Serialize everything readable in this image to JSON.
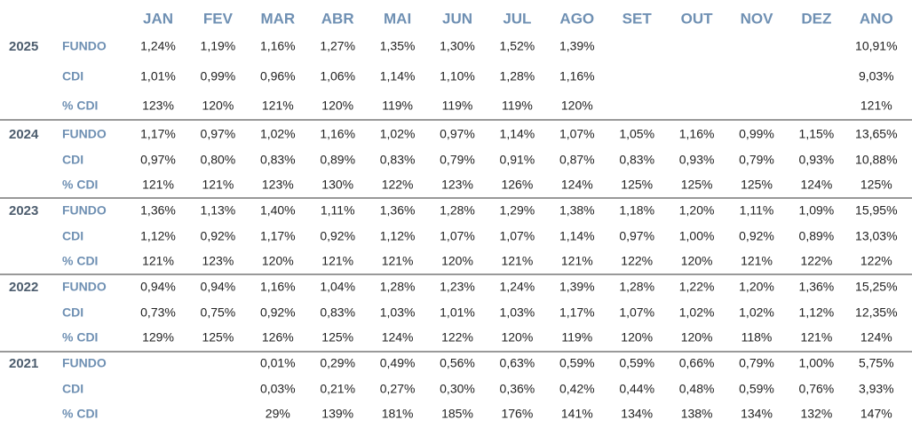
{
  "table": {
    "header": [
      "JAN",
      "FEV",
      "MAR",
      "ABR",
      "MAI",
      "JUN",
      "JUL",
      "AGO",
      "SET",
      "OUT",
      "NOV",
      "DEZ",
      "ANO"
    ],
    "years": [
      {
        "year": "2025",
        "rows": [
          {
            "label": "FUNDO",
            "cells": [
              "1,24%",
              "1,19%",
              "1,16%",
              "1,27%",
              "1,35%",
              "1,30%",
              "1,52%",
              "1,39%",
              null,
              null,
              null,
              null,
              "10,91%"
            ]
          },
          {
            "label": "CDI",
            "cells": [
              "1,01%",
              "0,99%",
              "0,96%",
              "1,06%",
              "1,14%",
              "1,10%",
              "1,28%",
              "1,16%",
              null,
              null,
              null,
              null,
              "9,03%"
            ]
          },
          {
            "label": "% CDI",
            "cells": [
              "123%",
              "120%",
              "121%",
              "120%",
              "119%",
              "119%",
              "119%",
              "120%",
              null,
              null,
              null,
              null,
              "121%"
            ]
          }
        ]
      },
      {
        "year": "2024",
        "rows": [
          {
            "label": "FUNDO",
            "cells": [
              "1,17%",
              "0,97%",
              "1,02%",
              "1,16%",
              "1,02%",
              "0,97%",
              "1,14%",
              "1,07%",
              "1,05%",
              "1,16%",
              "0,99%",
              "1,15%",
              "13,65%"
            ]
          },
          {
            "label": "CDI",
            "cells": [
              "0,97%",
              "0,80%",
              "0,83%",
              "0,89%",
              "0,83%",
              "0,79%",
              "0,91%",
              "0,87%",
              "0,83%",
              "0,93%",
              "0,79%",
              "0,93%",
              "10,88%"
            ]
          },
          {
            "label": "% CDI",
            "cells": [
              "121%",
              "121%",
              "123%",
              "130%",
              "122%",
              "123%",
              "126%",
              "124%",
              "125%",
              "125%",
              "125%",
              "124%",
              "125%"
            ]
          }
        ]
      },
      {
        "year": "2023",
        "rows": [
          {
            "label": "FUNDO",
            "cells": [
              "1,36%",
              "1,13%",
              "1,40%",
              "1,11%",
              "1,36%",
              "1,28%",
              "1,29%",
              "1,38%",
              "1,18%",
              "1,20%",
              "1,11%",
              "1,09%",
              "15,95%"
            ]
          },
          {
            "label": "CDI",
            "cells": [
              "1,12%",
              "0,92%",
              "1,17%",
              "0,92%",
              "1,12%",
              "1,07%",
              "1,07%",
              "1,14%",
              "0,97%",
              "1,00%",
              "0,92%",
              "0,89%",
              "13,03%"
            ]
          },
          {
            "label": "% CDI",
            "cells": [
              "121%",
              "123%",
              "120%",
              "121%",
              "121%",
              "120%",
              "121%",
              "121%",
              "122%",
              "120%",
              "121%",
              "122%",
              "122%"
            ]
          }
        ]
      },
      {
        "year": "2022",
        "rows": [
          {
            "label": "FUNDO",
            "cells": [
              "0,94%",
              "0,94%",
              "1,16%",
              "1,04%",
              "1,28%",
              "1,23%",
              "1,24%",
              "1,39%",
              "1,28%",
              "1,22%",
              "1,20%",
              "1,36%",
              "15,25%"
            ]
          },
          {
            "label": "CDI",
            "cells": [
              "0,73%",
              "0,75%",
              "0,92%",
              "0,83%",
              "1,03%",
              "1,01%",
              "1,03%",
              "1,17%",
              "1,07%",
              "1,02%",
              "1,02%",
              "1,12%",
              "12,35%"
            ]
          },
          {
            "label": "% CDI",
            "cells": [
              "129%",
              "125%",
              "126%",
              "125%",
              "124%",
              "122%",
              "120%",
              "119%",
              "120%",
              "120%",
              "118%",
              "121%",
              "124%"
            ]
          }
        ]
      },
      {
        "year": "2021",
        "rows": [
          {
            "label": "FUNDO",
            "cells": [
              null,
              null,
              "0,01%",
              "0,29%",
              "0,49%",
              "0,56%",
              "0,63%",
              "0,59%",
              "0,59%",
              "0,66%",
              "0,79%",
              "1,00%",
              "5,75%"
            ]
          },
          {
            "label": "CDI",
            "cells": [
              null,
              null,
              "0,03%",
              "0,21%",
              "0,27%",
              "0,30%",
              "0,36%",
              "0,42%",
              "0,44%",
              "0,48%",
              "0,59%",
              "0,76%",
              "3,93%"
            ]
          },
          {
            "label": "% CDI",
            "cells": [
              null,
              null,
              "29%",
              "139%",
              "181%",
              "185%",
              "176%",
              "141%",
              "134%",
              "138%",
              "134%",
              "132%",
              "147%"
            ]
          }
        ]
      }
    ]
  }
}
